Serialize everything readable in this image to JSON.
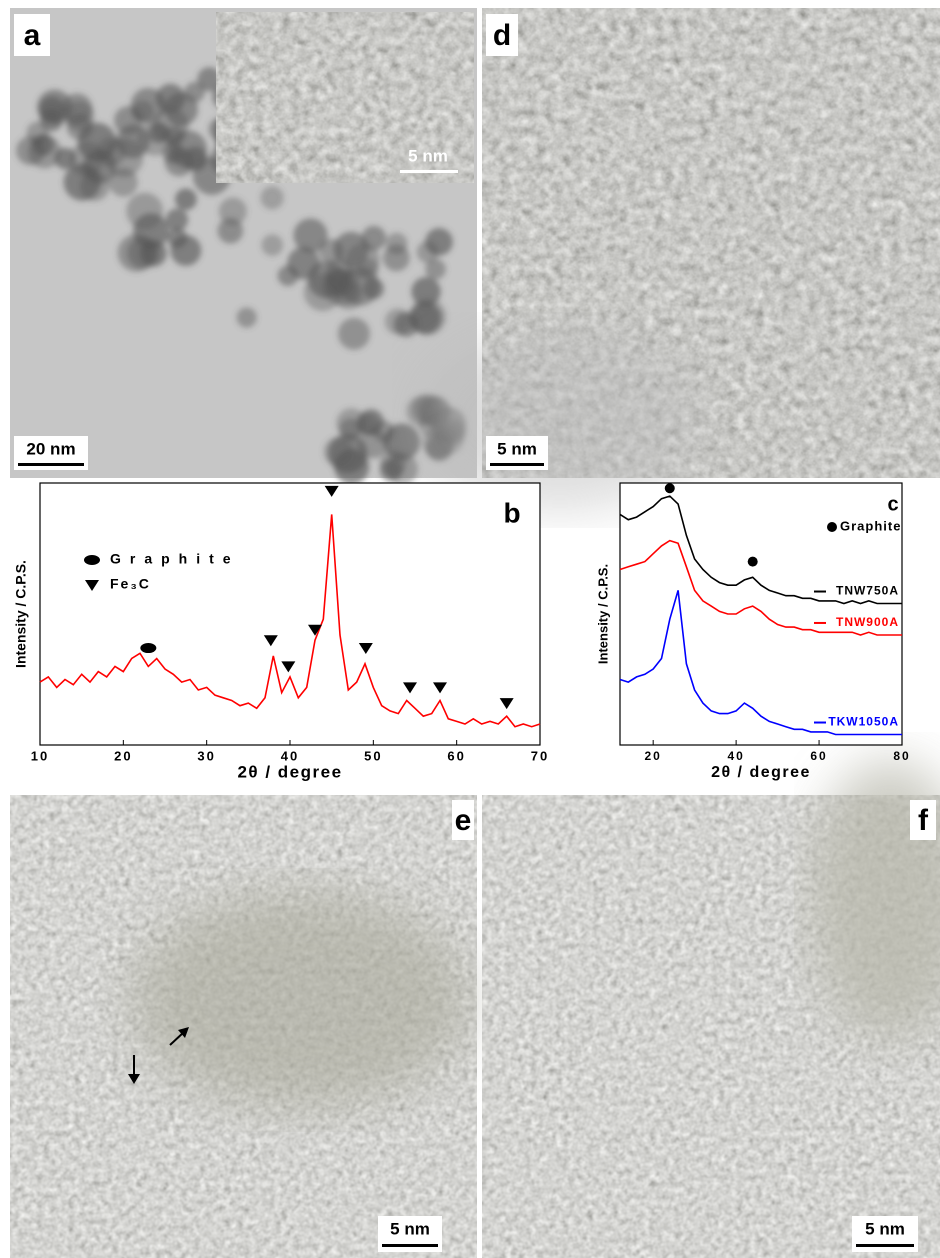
{
  "panels": {
    "a": {
      "label": "a",
      "scale_bar": "20 nm",
      "inset_scale_bar": "5 nm"
    },
    "d": {
      "label": "d",
      "scale_bar": "5 nm"
    },
    "e": {
      "label": "e",
      "scale_bar": "5 nm"
    },
    "f": {
      "label": "f",
      "scale_bar": "5 nm"
    }
  },
  "chart_data": [
    {
      "type": "line",
      "panel_label": "b",
      "xlabel": "2θ / degree",
      "ylabel": "Intensity / C.P.S.",
      "xlim": [
        10,
        70
      ],
      "xticks": [
        10,
        20,
        30,
        40,
        50,
        60,
        70
      ],
      "ylim": [
        0,
        100
      ],
      "color": "#ff0000",
      "x": [
        10,
        11,
        12,
        13,
        14,
        15,
        16,
        17,
        18,
        19,
        20,
        21,
        22,
        23,
        24,
        25,
        26,
        27,
        28,
        29,
        30,
        31,
        32,
        33,
        34,
        35,
        36,
        37,
        38,
        39,
        40,
        41,
        42,
        43,
        44,
        45,
        46,
        47,
        48,
        49,
        50,
        51,
        52,
        53,
        54,
        55,
        56,
        57,
        58,
        59,
        60,
        61,
        62,
        63,
        64,
        65,
        66,
        67,
        68,
        69,
        70
      ],
      "values": [
        24,
        26,
        22,
        25,
        23,
        27,
        24,
        28,
        26,
        30,
        28,
        33,
        35,
        30,
        33,
        29,
        27,
        24,
        25,
        21,
        22,
        19,
        18,
        17,
        15,
        16,
        14,
        18,
        34,
        20,
        26,
        18,
        22,
        40,
        48,
        88,
        42,
        21,
        24,
        31,
        22,
        15,
        13,
        12,
        17,
        14,
        11,
        12,
        17,
        10,
        9,
        8,
        10,
        8,
        9,
        8,
        11,
        7,
        8,
        7,
        8
      ],
      "markers": [
        {
          "name": "Graphite",
          "shape": "ellipse",
          "x": [
            23
          ],
          "y": [
            37
          ]
        },
        {
          "name": "Fe₃C",
          "shape": "triangle",
          "x": [
            37.7,
            39.8,
            43,
            45,
            49.1,
            54.4,
            58,
            66
          ],
          "y": [
            40,
            30,
            44,
            97,
            37,
            22,
            22,
            16
          ]
        }
      ]
    },
    {
      "type": "line",
      "panel_label": "c",
      "xlabel": "2θ / degree",
      "ylabel": "Intensity / C.P.S.",
      "xlim": [
        12,
        80
      ],
      "xticks": [
        20,
        40,
        60,
        80
      ],
      "ylim": [
        0,
        100
      ],
      "x": [
        12,
        14,
        16,
        18,
        20,
        22,
        24,
        26,
        28,
        30,
        32,
        34,
        36,
        38,
        40,
        42,
        44,
        46,
        48,
        50,
        52,
        54,
        56,
        58,
        60,
        62,
        64,
        66,
        68,
        70,
        72,
        74,
        76,
        78,
        80
      ],
      "series": [
        {
          "name": "TNW750A",
          "color": "#000000",
          "values": [
            88,
            86,
            87,
            89,
            91,
            94,
            95,
            92,
            80,
            71,
            67,
            64,
            62,
            61,
            61,
            63,
            64,
            61,
            59,
            58,
            57,
            57,
            56,
            56,
            55,
            55,
            55,
            54,
            55,
            54,
            55,
            54,
            54,
            54,
            54
          ]
        },
        {
          "name": "TNW900A",
          "color": "#ff0000",
          "values": [
            67,
            68,
            69,
            70,
            73,
            76,
            78,
            77,
            68,
            59,
            55,
            53,
            51,
            50,
            50,
            52,
            53,
            51,
            48,
            46,
            45,
            45,
            44,
            44,
            43,
            43,
            43,
            43,
            43,
            42,
            43,
            42,
            42,
            42,
            42
          ]
        },
        {
          "name": "TKW1050A",
          "color": "#0000ff",
          "values": [
            25,
            24,
            26,
            27,
            29,
            33,
            48,
            59,
            31,
            21,
            16,
            13,
            12,
            12,
            13,
            16,
            14,
            11,
            9,
            8,
            7,
            6,
            6,
            5,
            5,
            5,
            4,
            4,
            4,
            4,
            4,
            4,
            4,
            4,
            4
          ]
        }
      ],
      "markers": [
        {
          "name": "Graphite",
          "shape": "dot",
          "x": [
            24,
            44
          ],
          "y": [
            98,
            70
          ]
        }
      ]
    }
  ]
}
